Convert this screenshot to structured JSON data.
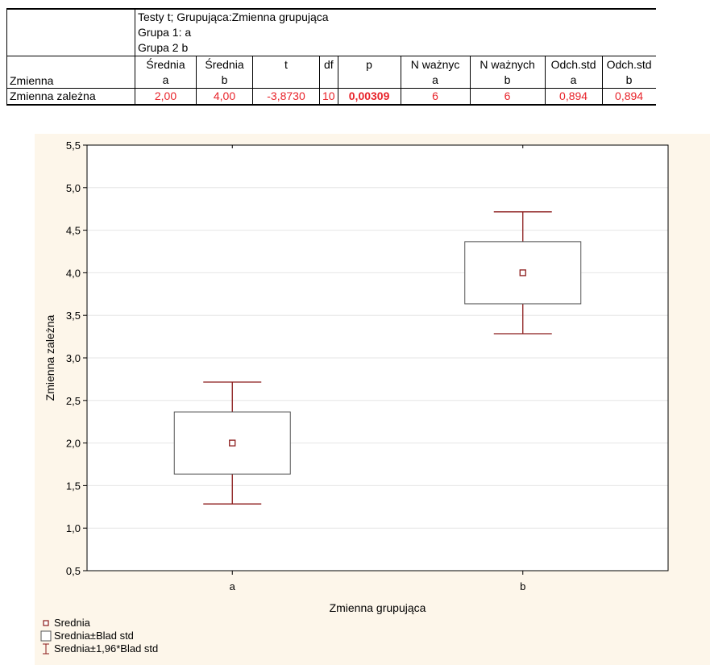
{
  "table": {
    "header_lines": [
      "Testy t; Grupująca:Zmienna grupująca",
      "Grupa 1: a",
      "Grupa 2 b"
    ],
    "variable_header": "Zmienna",
    "columns": [
      {
        "line1": "Średnia",
        "line2": "a"
      },
      {
        "line1": "Średnia",
        "line2": "b"
      },
      {
        "line1": "t",
        "line2": ""
      },
      {
        "line1": "df",
        "line2": ""
      },
      {
        "line1": "p",
        "line2": ""
      },
      {
        "line1": "N ważnyc",
        "line2": "a"
      },
      {
        "line1": "N ważnych",
        "line2": "b"
      },
      {
        "line1": "Odch.std",
        "line2": "a"
      },
      {
        "line1": "Odch.std",
        "line2": "b"
      }
    ],
    "row": {
      "label": "Zmienna zależna",
      "values": [
        "2,00",
        "4,00",
        "-3,8730",
        "10",
        "0,00309",
        "6",
        "6",
        "0,894",
        "0,894"
      ]
    }
  },
  "chart_data": {
    "type": "box",
    "xlabel": "Zmienna grupująca",
    "ylabel": "Zmienna zależna",
    "ylim": [
      0.5,
      5.5
    ],
    "yticks": [
      "0,5",
      "1,0",
      "1,5",
      "2,0",
      "2,5",
      "3,0",
      "3,5",
      "4,0",
      "4,5",
      "5,0",
      "5,5"
    ],
    "yticks_values": [
      0.5,
      1.0,
      1.5,
      2.0,
      2.5,
      3.0,
      3.5,
      4.0,
      4.5,
      5.0,
      5.5
    ],
    "categories": [
      "a",
      "b"
    ],
    "mean": [
      2.0,
      4.0
    ],
    "box_low": [
      1.635,
      3.635
    ],
    "box_high": [
      2.365,
      4.365
    ],
    "whisker_low": [
      1.284,
      3.284
    ],
    "whisker_high": [
      2.716,
      4.716
    ],
    "grid": true,
    "legend_position": "bottom-left",
    "colors": {
      "marks": "#8b1a1a",
      "background": "#fdf6ea",
      "plot_bg": "#ffffff"
    }
  },
  "legend": [
    {
      "icon": "small-square-icon",
      "label": "Srednia"
    },
    {
      "icon": "box-icon",
      "label": "Srednia±Blad std"
    },
    {
      "icon": "error-bar-icon",
      "label": "Srednia±1,96*Blad std"
    }
  ]
}
